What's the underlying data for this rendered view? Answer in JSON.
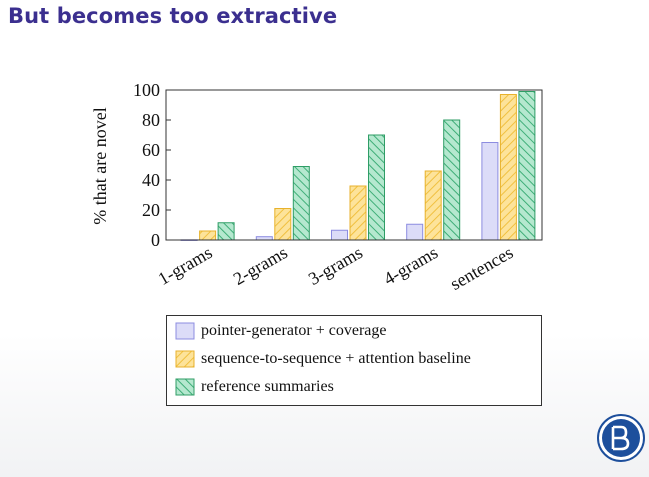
{
  "slide": {
    "title": "But becomes too extractive"
  },
  "colors": {
    "title": "#3b2f8f",
    "pointer_fill": "#dcdcf8",
    "pointer_stroke": "#8c8ce0",
    "seq_fill": "#fde39a",
    "seq_stroke": "#e8b22c",
    "seq_hatch": "#f0c040",
    "ref_fill": "#b5e8cf",
    "ref_stroke": "#2f9d66",
    "ref_hatch": "#3fae78",
    "logo": "#1d4f9c"
  },
  "logo_icon": "hse-university-logo",
  "chart_data": {
    "type": "bar",
    "title": "",
    "xlabel": "",
    "ylabel": "% that are novel",
    "ylim": [
      0,
      100
    ],
    "yticks": [
      "0",
      "20",
      "40",
      "60",
      "80",
      "100"
    ],
    "categories": [
      "1-grams",
      "2-grams",
      "3-grams",
      "4-grams",
      "sentences"
    ],
    "series": [
      {
        "name": "pointer-generator + coverage",
        "values": [
          0.1,
          2.2,
          6.5,
          10.5,
          65
        ]
      },
      {
        "name": "sequence-to-sequence + attention baseline",
        "values": [
          6,
          21,
          36,
          46,
          97
        ]
      },
      {
        "name": "reference summaries",
        "values": [
          11.5,
          49,
          70,
          80,
          99
        ]
      }
    ],
    "grid": false,
    "legend": "bottom"
  }
}
